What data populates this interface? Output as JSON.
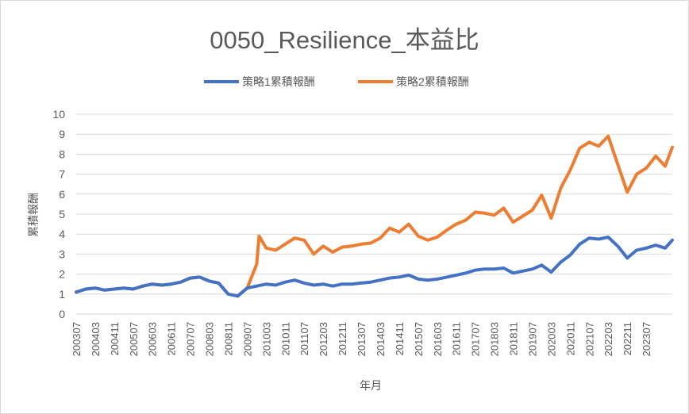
{
  "chart_data": {
    "type": "line",
    "title": "0050_Resilience_本益比",
    "xlabel": "年月",
    "ylabel": "累積報酬",
    "ylim": [
      0,
      10
    ],
    "yticks": [
      "0",
      "1",
      "2",
      "3",
      "4",
      "5",
      "6",
      "7",
      "8",
      "9",
      "10"
    ],
    "grid": true,
    "legend": "top-center",
    "x_tick_labels": [
      "200307",
      "200403",
      "200411",
      "200507",
      "200603",
      "200611",
      "200707",
      "200803",
      "200811",
      "200907",
      "201003",
      "201011",
      "201107",
      "201203",
      "201211",
      "201307",
      "201403",
      "201411",
      "201507",
      "201603",
      "201611",
      "201707",
      "201803",
      "201811",
      "201907",
      "202003",
      "202011",
      "202107",
      "202203",
      "202211",
      "202307"
    ],
    "series": [
      {
        "name": "策略1累積報酬",
        "color": "#4472c4",
        "points": [
          [
            "200307",
            1.1
          ],
          [
            "200311",
            1.25
          ],
          [
            "200403",
            1.3
          ],
          [
            "200407",
            1.2
          ],
          [
            "200411",
            1.25
          ],
          [
            "200503",
            1.3
          ],
          [
            "200507",
            1.25
          ],
          [
            "200511",
            1.4
          ],
          [
            "200603",
            1.5
          ],
          [
            "200607",
            1.45
          ],
          [
            "200611",
            1.5
          ],
          [
            "200703",
            1.6
          ],
          [
            "200707",
            1.8
          ],
          [
            "200711",
            1.85
          ],
          [
            "200803",
            1.65
          ],
          [
            "200807",
            1.55
          ],
          [
            "200811",
            1.0
          ],
          [
            "200903",
            0.9
          ],
          [
            "200907",
            1.3
          ],
          [
            "200911",
            1.4
          ],
          [
            "201003",
            1.5
          ],
          [
            "201007",
            1.45
          ],
          [
            "201011",
            1.6
          ],
          [
            "201103",
            1.7
          ],
          [
            "201107",
            1.55
          ],
          [
            "201111",
            1.45
          ],
          [
            "201203",
            1.5
          ],
          [
            "201207",
            1.4
          ],
          [
            "201211",
            1.5
          ],
          [
            "201303",
            1.5
          ],
          [
            "201307",
            1.55
          ],
          [
            "201311",
            1.6
          ],
          [
            "201403",
            1.7
          ],
          [
            "201407",
            1.8
          ],
          [
            "201411",
            1.85
          ],
          [
            "201503",
            1.95
          ],
          [
            "201507",
            1.75
          ],
          [
            "201511",
            1.7
          ],
          [
            "201603",
            1.75
          ],
          [
            "201607",
            1.85
          ],
          [
            "201611",
            1.95
          ],
          [
            "201703",
            2.05
          ],
          [
            "201707",
            2.2
          ],
          [
            "201711",
            2.25
          ],
          [
            "201803",
            2.25
          ],
          [
            "201807",
            2.3
          ],
          [
            "201811",
            2.05
          ],
          [
            "201903",
            2.15
          ],
          [
            "201907",
            2.25
          ],
          [
            "201911",
            2.45
          ],
          [
            "202003",
            2.1
          ],
          [
            "202007",
            2.6
          ],
          [
            "202011",
            2.95
          ],
          [
            "202103",
            3.5
          ],
          [
            "202107",
            3.8
          ],
          [
            "202111",
            3.75
          ],
          [
            "202203",
            3.85
          ],
          [
            "202207",
            3.4
          ],
          [
            "202211",
            2.8
          ],
          [
            "202303",
            3.2
          ],
          [
            "202307",
            3.3
          ],
          [
            "202311",
            3.45
          ],
          [
            "202403",
            3.3
          ],
          [
            "202406",
            3.7
          ]
        ]
      },
      {
        "name": "策略2累積報酬",
        "color": "#ed7d31",
        "points": [
          [
            "200307",
            1.1
          ],
          [
            "200311",
            1.25
          ],
          [
            "200403",
            1.3
          ],
          [
            "200407",
            1.2
          ],
          [
            "200411",
            1.25
          ],
          [
            "200503",
            1.3
          ],
          [
            "200507",
            1.25
          ],
          [
            "200511",
            1.4
          ],
          [
            "200603",
            1.5
          ],
          [
            "200607",
            1.45
          ],
          [
            "200611",
            1.5
          ],
          [
            "200703",
            1.6
          ],
          [
            "200707",
            1.8
          ],
          [
            "200711",
            1.85
          ],
          [
            "200803",
            1.65
          ],
          [
            "200807",
            1.55
          ],
          [
            "200811",
            1.0
          ],
          [
            "200903",
            0.9
          ],
          [
            "200907",
            1.3
          ],
          [
            "200911",
            2.5
          ],
          [
            "200912",
            3.9
          ],
          [
            "201003",
            3.3
          ],
          [
            "201007",
            3.2
          ],
          [
            "201011",
            3.5
          ],
          [
            "201103",
            3.8
          ],
          [
            "201107",
            3.7
          ],
          [
            "201111",
            3.0
          ],
          [
            "201203",
            3.4
          ],
          [
            "201207",
            3.1
          ],
          [
            "201211",
            3.35
          ],
          [
            "201303",
            3.4
          ],
          [
            "201307",
            3.5
          ],
          [
            "201311",
            3.55
          ],
          [
            "201403",
            3.8
          ],
          [
            "201407",
            4.3
          ],
          [
            "201411",
            4.1
          ],
          [
            "201503",
            4.5
          ],
          [
            "201507",
            3.9
          ],
          [
            "201511",
            3.7
          ],
          [
            "201603",
            3.85
          ],
          [
            "201607",
            4.2
          ],
          [
            "201611",
            4.5
          ],
          [
            "201703",
            4.7
          ],
          [
            "201707",
            5.1
          ],
          [
            "201711",
            5.05
          ],
          [
            "201803",
            4.95
          ],
          [
            "201807",
            5.3
          ],
          [
            "201811",
            4.6
          ],
          [
            "201903",
            4.9
          ],
          [
            "201907",
            5.2
          ],
          [
            "201911",
            5.95
          ],
          [
            "202003",
            4.8
          ],
          [
            "202007",
            6.3
          ],
          [
            "202011",
            7.2
          ],
          [
            "202103",
            8.3
          ],
          [
            "202107",
            8.6
          ],
          [
            "202111",
            8.4
          ],
          [
            "202203",
            8.9
          ],
          [
            "202207",
            7.5
          ],
          [
            "202211",
            6.1
          ],
          [
            "202303",
            7.0
          ],
          [
            "202307",
            7.3
          ],
          [
            "202311",
            7.9
          ],
          [
            "202403",
            7.4
          ],
          [
            "202406",
            8.35
          ]
        ]
      }
    ]
  }
}
